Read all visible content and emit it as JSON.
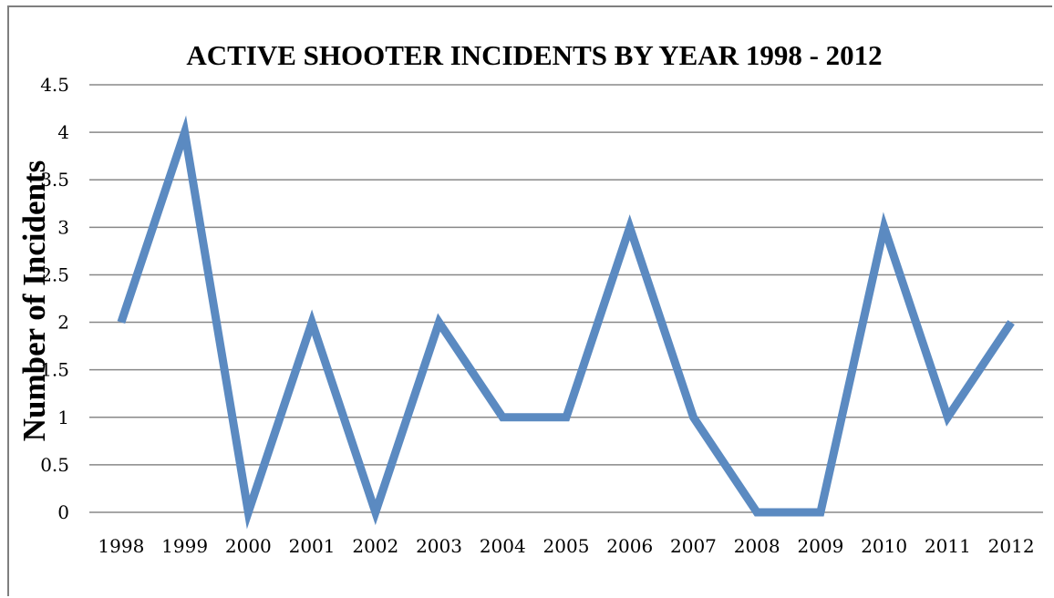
{
  "chart_data": {
    "type": "line",
    "title": "ACTIVE SHOOTER INCIDENTS BY YEAR 1998 - 2012",
    "xlabel": "",
    "ylabel": "Number of Incidents",
    "categories": [
      "1998",
      "1999",
      "2000",
      "2001",
      "2002",
      "2003",
      "2004",
      "2005",
      "2006",
      "2007",
      "2008",
      "2009",
      "2010",
      "2011",
      "2012"
    ],
    "series": [
      {
        "values": [
          2,
          4,
          0,
          2,
          0,
          2,
          1,
          1,
          3,
          1,
          0,
          0,
          3,
          1,
          2
        ]
      }
    ],
    "ylim": [
      0,
      4.5
    ],
    "yticks": [
      "0",
      "0.5",
      "1",
      "1.5",
      "2",
      "2.5",
      "3",
      "3.5",
      "4",
      "4.5"
    ],
    "grid": true,
    "legend": "none",
    "colors": {
      "series": "#5b8ac1",
      "grid": "#888888"
    }
  }
}
